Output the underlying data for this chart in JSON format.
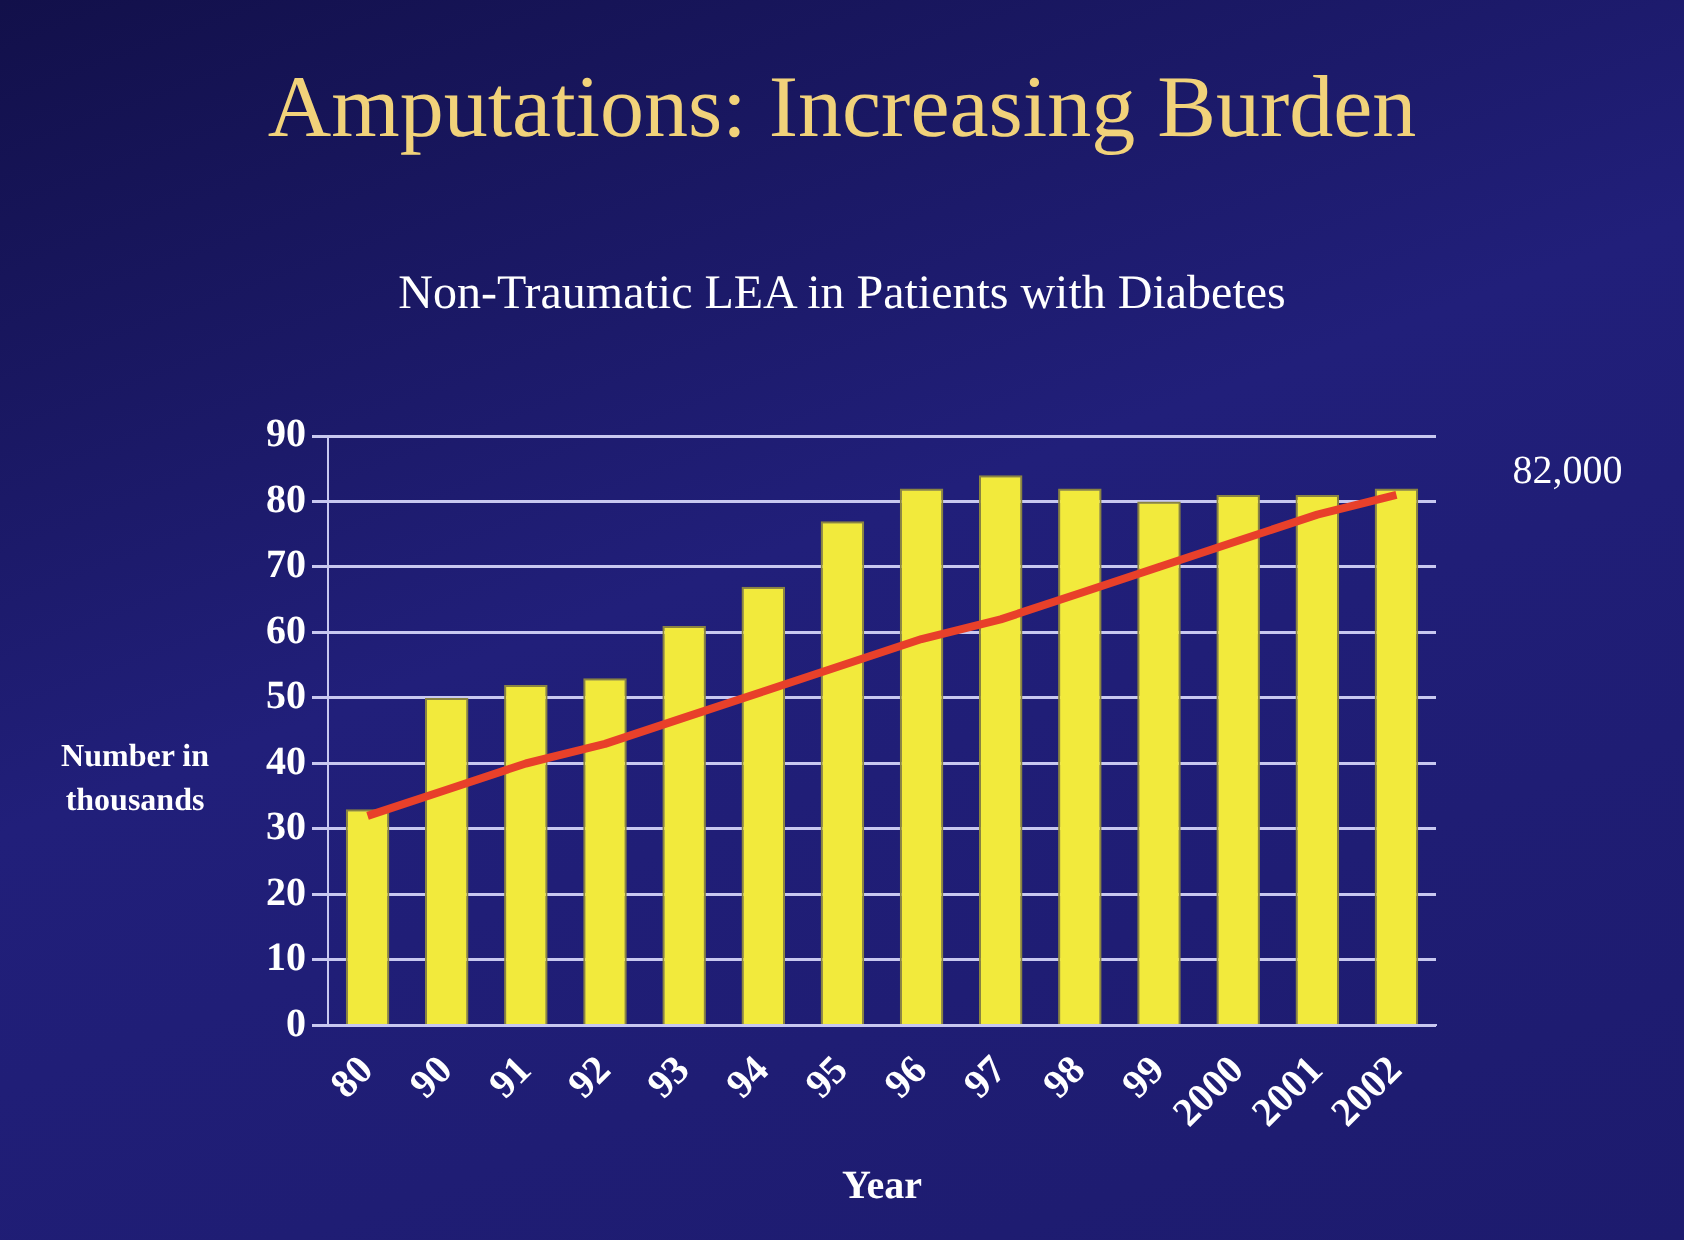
{
  "chart_data": {
    "type": "bar",
    "title": "Amputations: Increasing Burden",
    "subtitle": "Non-Traumatic LEA in Patients with Diabetes",
    "xlabel": "Year",
    "ylabel": "Number in\nthousands",
    "categories": [
      "80",
      "90",
      "91",
      "92",
      "93",
      "94",
      "95",
      "96",
      "97",
      "98",
      "99",
      "2000",
      "2001",
      "2002"
    ],
    "series": [
      {
        "color": "#f2ea3c",
        "values": [
          33,
          50,
          52,
          53,
          61,
          67,
          77,
          82,
          84,
          82,
          80,
          81,
          81,
          82
        ]
      },
      {
        "type": "line",
        "color": "#e8402a",
        "values": [
          32,
          36,
          40,
          43,
          47,
          51,
          55,
          59,
          62,
          66,
          70,
          74,
          78,
          81
        ]
      }
    ],
    "annotations": [
      {
        "text": "82,000",
        "x": "2002",
        "y": 82
      }
    ],
    "ylim": [
      0,
      90
    ],
    "yticks": [
      0,
      10,
      20,
      30,
      40,
      50,
      60,
      70,
      80,
      90
    ],
    "grid": "y",
    "legend": false,
    "marker": "none",
    "line_style": "solid"
  }
}
